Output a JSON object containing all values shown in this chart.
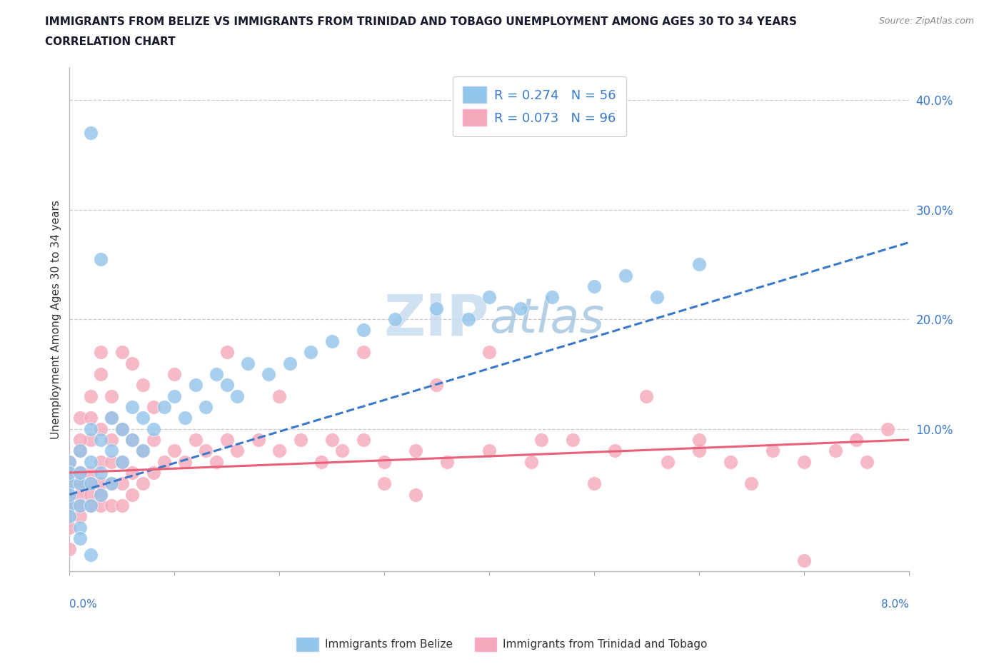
{
  "title_line1": "IMMIGRANTS FROM BELIZE VS IMMIGRANTS FROM TRINIDAD AND TOBAGO UNEMPLOYMENT AMONG AGES 30 TO 34 YEARS",
  "title_line2": "CORRELATION CHART",
  "source_text": "Source: ZipAtlas.com",
  "ylabel": "Unemployment Among Ages 30 to 34 years",
  "legend_belize_label": "Immigrants from Belize",
  "legend_tt_label": "Immigrants from Trinidad and Tobago",
  "R_belize": 0.274,
  "N_belize": 56,
  "R_tt": 0.073,
  "N_tt": 96,
  "right_ytick_values": [
    0.1,
    0.2,
    0.3,
    0.4
  ],
  "xmin": 0.0,
  "xmax": 0.08,
  "ymin": -0.03,
  "ymax": 0.43,
  "belize_color": "#92C5EA",
  "tt_color": "#F4A8BB",
  "belize_line_color": "#3A78C9",
  "tt_line_color": "#E8607A",
  "watermark_color_zip": "#C5D8EC",
  "watermark_color_atlas": "#A0C4E0",
  "background_color": "#FFFFFF",
  "belize_trend_y0": 0.04,
  "belize_trend_y1": 0.27,
  "tt_trend_y0": 0.06,
  "tt_trend_y1": 0.09,
  "belize_x": [
    0.0,
    0.0,
    0.0,
    0.0,
    0.0,
    0.0,
    0.001,
    0.001,
    0.001,
    0.001,
    0.001,
    0.002,
    0.002,
    0.002,
    0.002,
    0.003,
    0.003,
    0.003,
    0.004,
    0.004,
    0.004,
    0.005,
    0.005,
    0.006,
    0.006,
    0.007,
    0.007,
    0.008,
    0.009,
    0.01,
    0.011,
    0.012,
    0.013,
    0.014,
    0.015,
    0.016,
    0.017,
    0.019,
    0.021,
    0.023,
    0.025,
    0.028,
    0.031,
    0.035,
    0.038,
    0.04,
    0.043,
    0.046,
    0.05,
    0.053,
    0.056,
    0.06,
    0.002,
    0.003,
    0.001,
    0.002
  ],
  "belize_y": [
    0.05,
    0.07,
    0.03,
    0.06,
    0.04,
    0.02,
    0.08,
    0.05,
    0.03,
    0.01,
    0.06,
    0.1,
    0.07,
    0.05,
    0.03,
    0.09,
    0.06,
    0.04,
    0.11,
    0.08,
    0.05,
    0.1,
    0.07,
    0.12,
    0.09,
    0.11,
    0.08,
    0.1,
    0.12,
    0.13,
    0.11,
    0.14,
    0.12,
    0.15,
    0.14,
    0.13,
    0.16,
    0.15,
    0.16,
    0.17,
    0.18,
    0.19,
    0.2,
    0.21,
    0.2,
    0.22,
    0.21,
    0.22,
    0.23,
    0.24,
    0.22,
    0.25,
    0.37,
    0.255,
    0.0,
    -0.015
  ],
  "tt_x": [
    0.0,
    0.0,
    0.0,
    0.0,
    0.0,
    0.0,
    0.0,
    0.001,
    0.001,
    0.001,
    0.001,
    0.001,
    0.001,
    0.002,
    0.002,
    0.002,
    0.002,
    0.002,
    0.003,
    0.003,
    0.003,
    0.003,
    0.003,
    0.004,
    0.004,
    0.004,
    0.004,
    0.005,
    0.005,
    0.005,
    0.005,
    0.006,
    0.006,
    0.006,
    0.007,
    0.007,
    0.008,
    0.008,
    0.009,
    0.01,
    0.011,
    0.012,
    0.013,
    0.014,
    0.015,
    0.016,
    0.018,
    0.02,
    0.022,
    0.024,
    0.026,
    0.028,
    0.03,
    0.033,
    0.036,
    0.04,
    0.044,
    0.048,
    0.052,
    0.057,
    0.06,
    0.063,
    0.067,
    0.07,
    0.073,
    0.076,
    0.0,
    0.001,
    0.001,
    0.002,
    0.002,
    0.003,
    0.003,
    0.004,
    0.004,
    0.005,
    0.006,
    0.007,
    0.008,
    0.01,
    0.015,
    0.02,
    0.025,
    0.03,
    0.035,
    0.04,
    0.045,
    0.05,
    0.055,
    0.06,
    0.065,
    0.07,
    0.075,
    0.078,
    0.028,
    0.033
  ],
  "tt_y": [
    0.07,
    0.05,
    0.04,
    0.03,
    0.06,
    0.02,
    0.01,
    0.08,
    0.05,
    0.04,
    0.03,
    0.06,
    0.02,
    0.09,
    0.06,
    0.05,
    0.04,
    0.03,
    0.1,
    0.07,
    0.05,
    0.04,
    0.03,
    0.09,
    0.07,
    0.05,
    0.03,
    0.1,
    0.07,
    0.05,
    0.03,
    0.09,
    0.06,
    0.04,
    0.08,
    0.05,
    0.09,
    0.06,
    0.07,
    0.08,
    0.07,
    0.09,
    0.08,
    0.07,
    0.09,
    0.08,
    0.09,
    0.08,
    0.09,
    0.07,
    0.08,
    0.09,
    0.07,
    0.08,
    0.07,
    0.08,
    0.07,
    0.09,
    0.08,
    0.07,
    0.08,
    0.07,
    0.08,
    0.07,
    0.08,
    0.07,
    -0.01,
    0.11,
    0.09,
    0.13,
    0.11,
    0.17,
    0.15,
    0.13,
    0.11,
    0.17,
    0.16,
    0.14,
    0.12,
    0.15,
    0.17,
    0.13,
    0.09,
    0.05,
    0.14,
    0.17,
    0.09,
    0.05,
    0.13,
    0.09,
    0.05,
    -0.02,
    0.09,
    0.1,
    0.17,
    0.04
  ]
}
